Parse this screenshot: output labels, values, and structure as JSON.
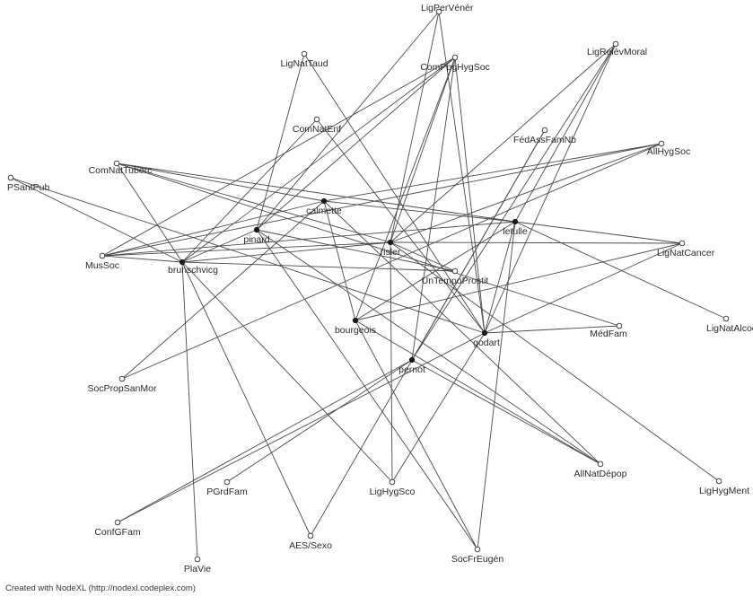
{
  "credit": "Created with NodeXL (http://nodexl.codeplex.com)",
  "nodes": [
    {
      "id": "LigPerVénér",
      "type": "org"
    },
    {
      "id": "LigNatTaud",
      "type": "org"
    },
    {
      "id": "ComPpgHygSoc",
      "type": "org"
    },
    {
      "id": "LigRelèvMoral",
      "type": "org"
    },
    {
      "id": "ComNatEnf",
      "type": "org"
    },
    {
      "id": "FédAssFamNb",
      "type": "org"
    },
    {
      "id": "AllHygSoc",
      "type": "org"
    },
    {
      "id": "ComNatTuberc",
      "type": "org"
    },
    {
      "id": "PSantPub",
      "type": "org"
    },
    {
      "id": "calmette",
      "type": "person"
    },
    {
      "id": "letulle",
      "type": "person"
    },
    {
      "id": "pinard",
      "type": "person"
    },
    {
      "id": "risler",
      "type": "person"
    },
    {
      "id": "LigNatCancer",
      "type": "org"
    },
    {
      "id": "MusSoc",
      "type": "org"
    },
    {
      "id": "brunschvicg",
      "type": "person"
    },
    {
      "id": "UnTempoProstit",
      "type": "org"
    },
    {
      "id": "LigNatAlcool",
      "type": "org"
    },
    {
      "id": "bourgeois",
      "type": "person"
    },
    {
      "id": "MédFam",
      "type": "org"
    },
    {
      "id": "godart",
      "type": "person"
    },
    {
      "id": "SocPropSanMor",
      "type": "org"
    },
    {
      "id": "pernot",
      "type": "person"
    },
    {
      "id": "AllNatDépop",
      "type": "org"
    },
    {
      "id": "LigHygMent",
      "type": "org"
    },
    {
      "id": "PGrdFam",
      "type": "org"
    },
    {
      "id": "LigHygSco",
      "type": "org"
    },
    {
      "id": "ConfGFam",
      "type": "org"
    },
    {
      "id": "AES/Sexo",
      "type": "org"
    },
    {
      "id": "SocFrEugén",
      "type": "org"
    },
    {
      "id": "PlaVie",
      "type": "org"
    }
  ],
  "edges": [
    [
      "LigPerVénér",
      "risler"
    ],
    [
      "LigPerVénér",
      "godart"
    ],
    [
      "LigPerVénér",
      "pinard"
    ],
    [
      "LigNatTaud",
      "pinard"
    ],
    [
      "LigNatTaud",
      "godart"
    ],
    [
      "ComPpgHygSoc",
      "brunschvicg"
    ],
    [
      "ComPpgHygSoc",
      "pinard"
    ],
    [
      "ComPpgHygSoc",
      "risler"
    ],
    [
      "ComPpgHygSoc",
      "bourgeois"
    ],
    [
      "ComPpgHygSoc",
      "pernot"
    ],
    [
      "ComPpgHygSoc",
      "godart"
    ],
    [
      "ComPpgHygSoc",
      "MusSoc"
    ],
    [
      "LigRelèvMoral",
      "risler"
    ],
    [
      "LigRelèvMoral",
      "pernot"
    ],
    [
      "LigRelèvMoral",
      "letulle"
    ],
    [
      "LigRelèvMoral",
      "godart"
    ],
    [
      "ComNatEnf",
      "brunschvicg"
    ],
    [
      "ComNatEnf",
      "godart"
    ],
    [
      "FédAssFamNb",
      "pernot"
    ],
    [
      "FédAssFamNb",
      "AES/Sexo"
    ],
    [
      "AllHygSoc",
      "calmette"
    ],
    [
      "AllHygSoc",
      "MusSoc"
    ],
    [
      "AllHygSoc",
      "risler"
    ],
    [
      "AllHygSoc",
      "SocPropSanMor"
    ],
    [
      "ComNatTuberc",
      "calmette"
    ],
    [
      "ComNatTuberc",
      "letulle"
    ],
    [
      "ComNatTuberc",
      "risler"
    ],
    [
      "ComNatTuberc",
      "brunschvicg"
    ],
    [
      "ComNatTuberc",
      "MédFam"
    ],
    [
      "PSantPub",
      "brunschvicg"
    ],
    [
      "PSantPub",
      "godart"
    ],
    [
      "calmette",
      "letulle"
    ],
    [
      "calmette",
      "MusSoc"
    ],
    [
      "calmette",
      "SocPropSanMor"
    ],
    [
      "calmette",
      "bourgeois"
    ],
    [
      "calmette",
      "AllNatDépop"
    ],
    [
      "letulle",
      "MusSoc"
    ],
    [
      "letulle",
      "LigNatCancer"
    ],
    [
      "letulle",
      "LigNatAlcool"
    ],
    [
      "letulle",
      "bourgeois"
    ],
    [
      "letulle",
      "godart"
    ],
    [
      "letulle",
      "SocFrEugén"
    ],
    [
      "pinard",
      "brunschvicg"
    ],
    [
      "pinard",
      "UnTempoProstit"
    ],
    [
      "pinard",
      "AllNatDépop"
    ],
    [
      "pinard",
      "SocFrEugén"
    ],
    [
      "risler",
      "MusSoc"
    ],
    [
      "risler",
      "brunschvicg"
    ],
    [
      "risler",
      "UnTempoProstit"
    ],
    [
      "risler",
      "LigHygSco"
    ],
    [
      "risler",
      "LigNatCancer"
    ],
    [
      "risler",
      "LigHygMent"
    ],
    [
      "brunschvicg",
      "MusSoc"
    ],
    [
      "brunschvicg",
      "UnTempoProstit"
    ],
    [
      "brunschvicg",
      "AES/Sexo"
    ],
    [
      "brunschvicg",
      "PlaVie"
    ],
    [
      "brunschvicg",
      "LigHygSco"
    ],
    [
      "bourgeois",
      "LigNatCancer"
    ],
    [
      "bourgeois",
      "AllNatDépop"
    ],
    [
      "bourgeois",
      "SocFrEugén"
    ],
    [
      "godart",
      "LigNatCancer"
    ],
    [
      "godart",
      "MédFam"
    ],
    [
      "godart",
      "LigHygSco"
    ],
    [
      "godart",
      "ConfGFam"
    ],
    [
      "pernot",
      "PGrdFam"
    ],
    [
      "pernot",
      "AllNatDépop"
    ],
    [
      "pernot",
      "ConfGFam"
    ]
  ]
}
